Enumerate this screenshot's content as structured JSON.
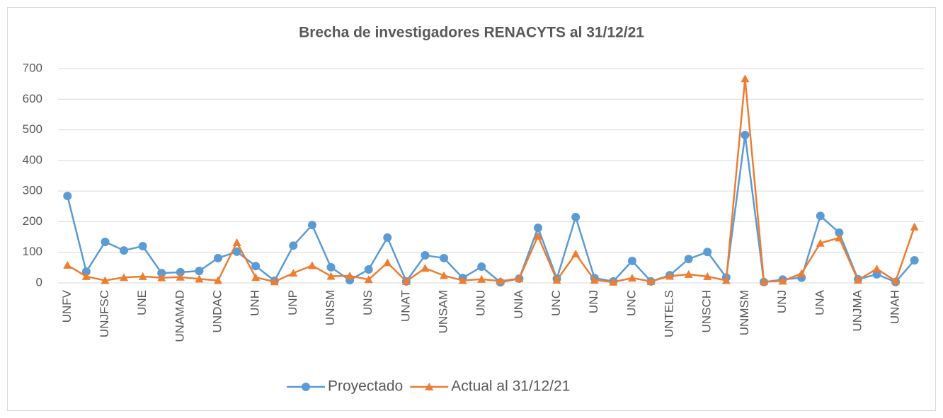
{
  "chart_data": {
    "type": "line",
    "title": "Brecha de investigadores RENACYTS al 31/12/21",
    "categories": [
      "UNFV",
      null,
      "UNJFSC",
      null,
      "UNE",
      null,
      "UNAMAD",
      null,
      "UNDAC",
      null,
      "UNH",
      null,
      "UNP",
      null,
      "UNSM",
      null,
      "UNS",
      null,
      "UNAT",
      null,
      "UNSAM",
      null,
      "UNU",
      null,
      "UNIA",
      null,
      "UNC",
      null,
      "UNJ",
      null,
      "UNC",
      null,
      "UNTELS",
      null,
      "UNSCH",
      null,
      "UNMSM",
      null,
      "UNJ",
      null,
      "UNA",
      null,
      "UNJMA",
      null,
      "UNAH",
      null
    ],
    "series": [
      {
        "name": "Proyectado",
        "color": "#5b9bd5",
        "marker": "circle",
        "values": [
          284,
          37,
          134,
          106,
          120,
          32,
          35,
          39,
          81,
          102,
          55,
          7,
          122,
          189,
          51,
          9,
          44,
          148,
          5,
          90,
          81,
          16,
          53,
          2,
          14,
          180,
          14,
          215,
          16,
          5,
          72,
          5,
          25,
          78,
          101,
          18,
          483,
          3,
          11,
          17,
          219,
          164,
          12,
          28,
          3,
          74
        ]
      },
      {
        "name": "Actual al 31/12/21",
        "color": "#ed7d31",
        "marker": "triangle",
        "values": [
          58,
          21,
          8,
          18,
          21,
          17,
          19,
          13,
          8,
          132,
          18,
          4,
          32,
          57,
          22,
          23,
          11,
          66,
          5,
          48,
          24,
          8,
          12,
          6,
          14,
          153,
          9,
          95,
          9,
          3,
          16,
          5,
          22,
          28,
          21,
          8,
          667,
          4,
          6,
          31,
          130,
          147,
          9,
          46,
          6,
          183
        ]
      }
    ],
    "ylim": [
      0,
      700
    ],
    "yticks": [
      0,
      100,
      200,
      300,
      400,
      500,
      600,
      700
    ],
    "grid": true,
    "legend": "bottom"
  }
}
